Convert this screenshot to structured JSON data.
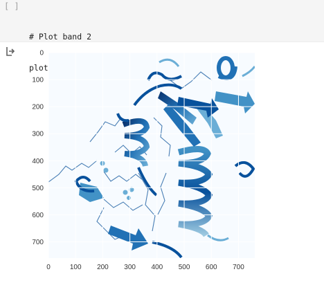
{
  "cell": {
    "execution_count": "[ ]",
    "code": [
      "# Plot band 2",
      "plotBand(ds, 2, 'Blues')"
    ]
  },
  "output": {
    "icon": "output-arrow-icon"
  },
  "chart_data": {
    "type": "heatmap",
    "colormap": "Blues",
    "title": "",
    "xlabel": "",
    "ylabel": "",
    "x_ticks": [
      0,
      100,
      200,
      300,
      400,
      500,
      600,
      700
    ],
    "y_ticks": [
      0,
      100,
      200,
      300,
      400,
      500,
      600,
      700
    ],
    "xlim": [
      0,
      760
    ],
    "ylim": [
      760,
      0
    ],
    "grid": true,
    "y_inverted": true
  },
  "colors": {
    "accent": "#2171b5",
    "dark": "#08306b",
    "mid": "#6baed6",
    "light": "#c6dbef",
    "background": "#f7fbff"
  }
}
